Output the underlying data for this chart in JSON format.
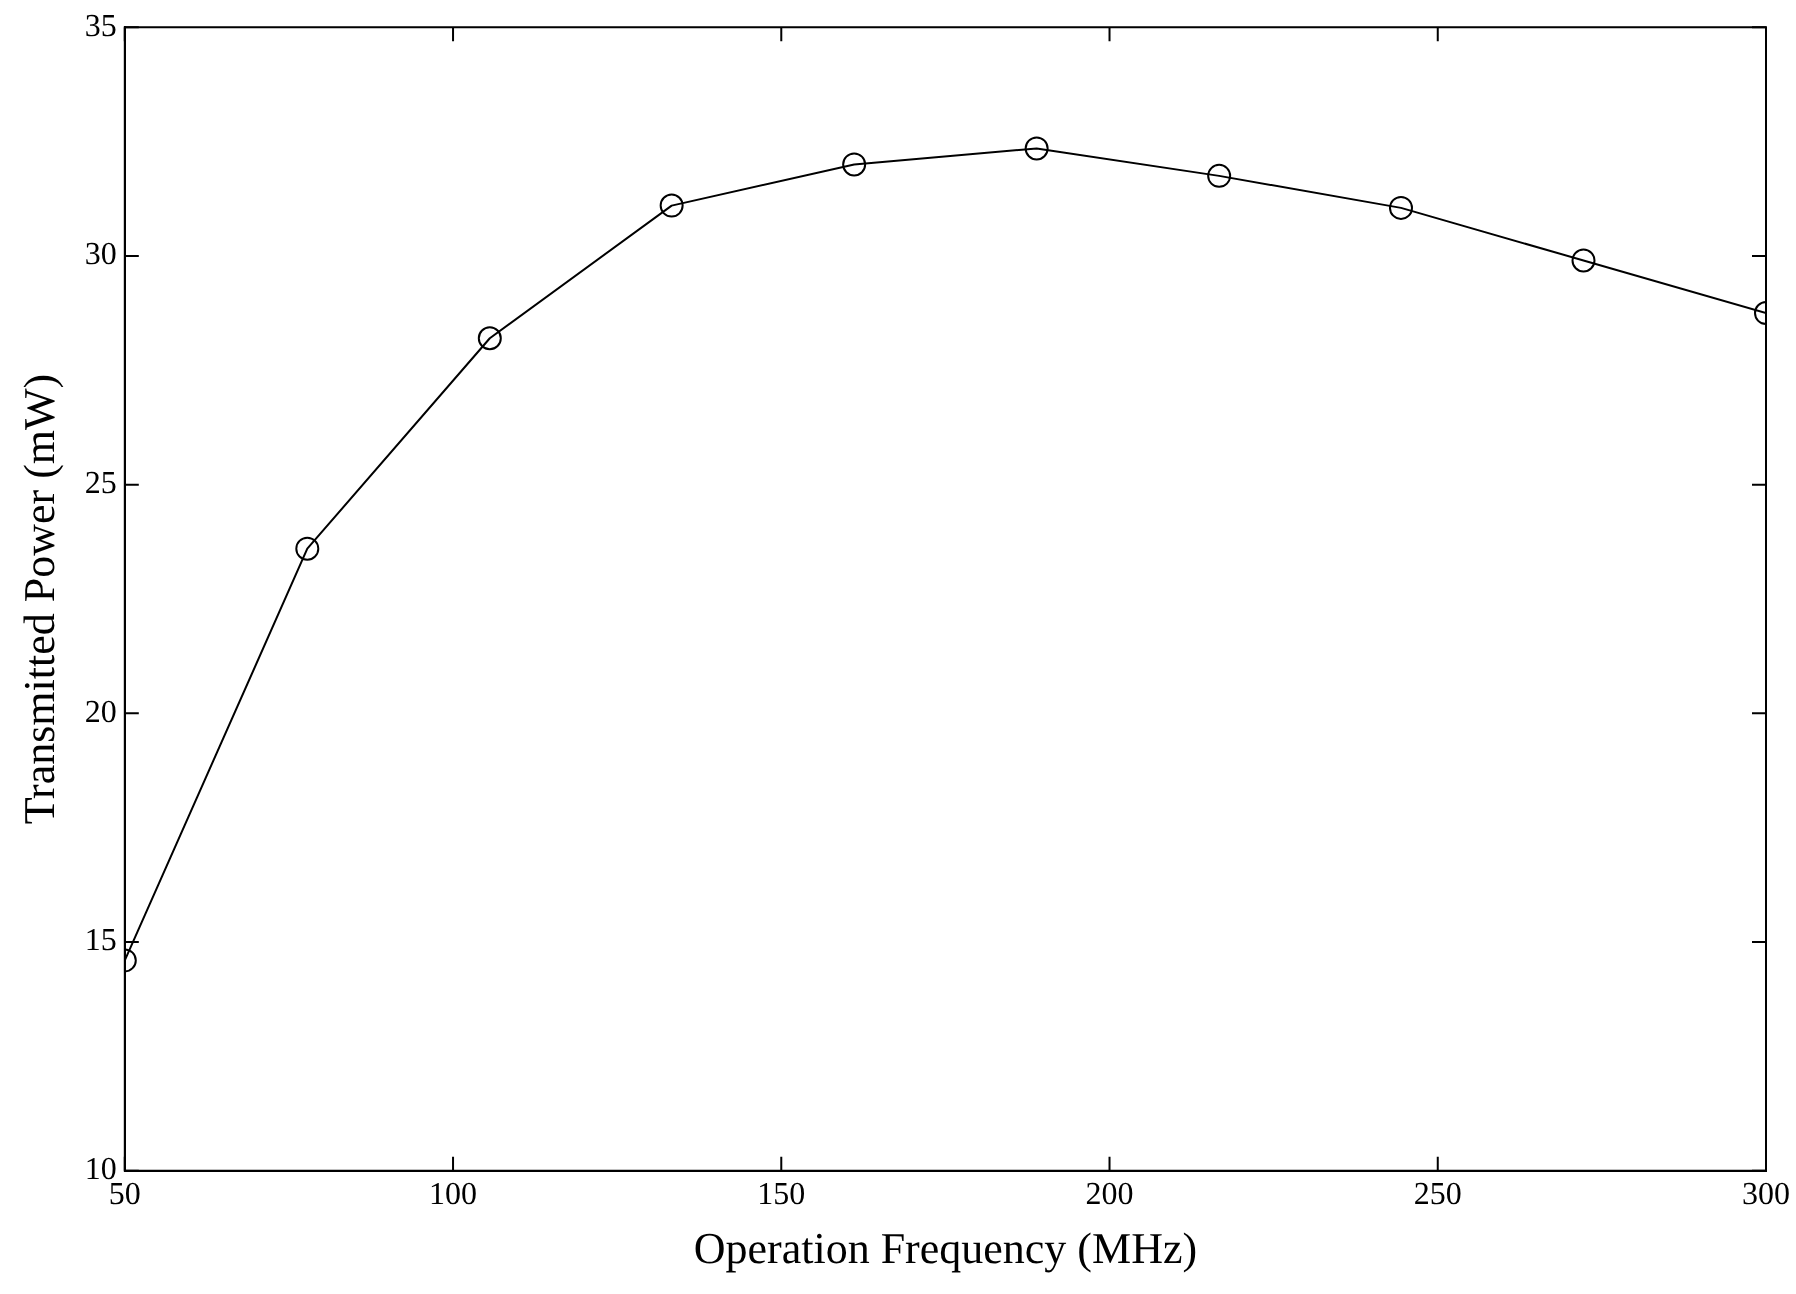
{
  "chart_data": {
    "type": "line",
    "xlabel": "Operation Frequency (MHz)",
    "ylabel": "Transmitted Power (mW)",
    "x": [
      50,
      77.8,
      105.6,
      133.3,
      161.1,
      188.9,
      216.7,
      244.4,
      272.2,
      300
    ],
    "series": [
      {
        "color": "#000000",
        "values": [
          14.6,
          23.6,
          28.2,
          31.1,
          32.0,
          32.35,
          31.75,
          31.05,
          29.9,
          28.75
        ]
      }
    ],
    "xlim": [
      50,
      300
    ],
    "xticks": [
      50,
      100,
      150,
      200,
      250,
      300
    ],
    "ylim": [
      10,
      35
    ],
    "yticks": [
      10,
      15,
      20,
      25,
      30,
      35
    ],
    "grid": false,
    "legend": false,
    "marker": "circle",
    "line_style": "solid"
  }
}
